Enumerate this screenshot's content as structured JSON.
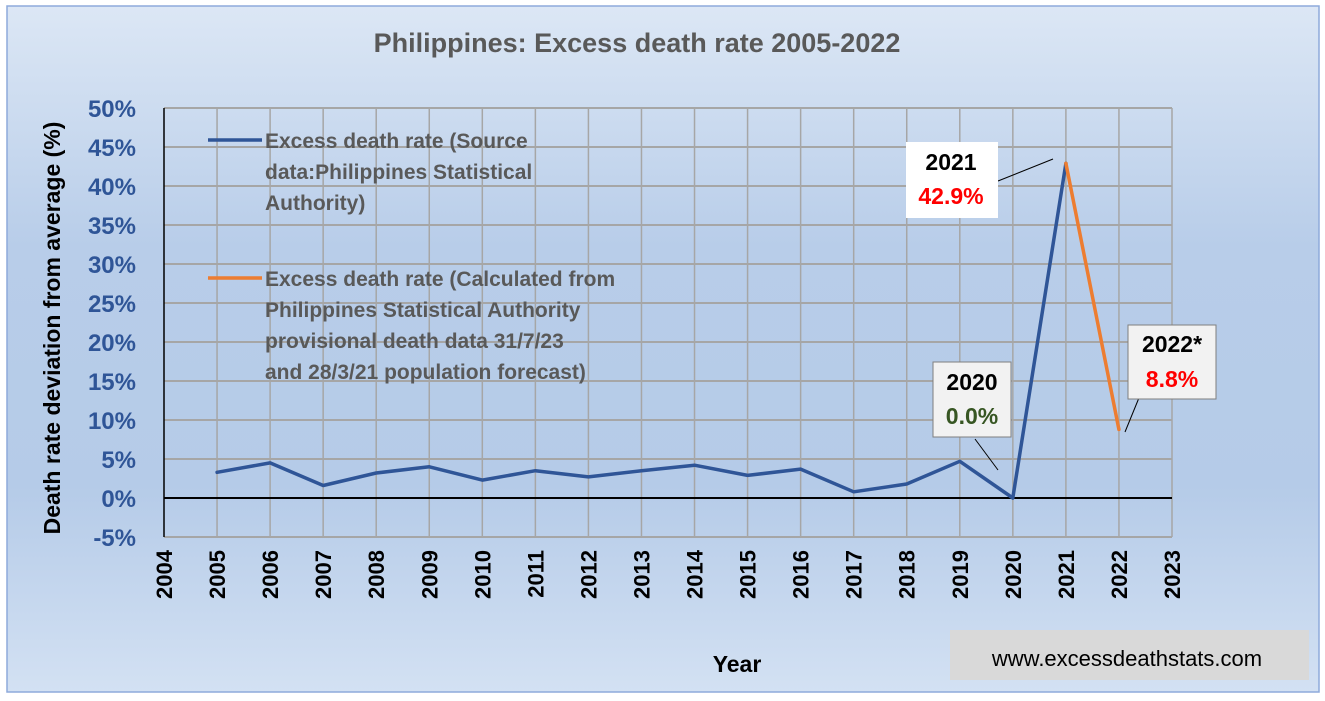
{
  "chart_data": {
    "type": "line",
    "title": "Philippines: Excess death rate 2005-2022",
    "xlabel": "Year",
    "ylabel": "Death rate deviation from average (%)",
    "xlim": [
      2004,
      2023
    ],
    "ylim": [
      -5,
      50
    ],
    "x_ticks": [
      "2004",
      "2005",
      "2006",
      "2007",
      "2008",
      "2009",
      "2010",
      "2011",
      "2012",
      "2013",
      "2014",
      "2015",
      "2016",
      "2017",
      "2018",
      "2019",
      "2020",
      "2021",
      "2022",
      "2023"
    ],
    "y_ticks": [
      "-5%",
      "0%",
      "5%",
      "10%",
      "15%",
      "20%",
      "25%",
      "30%",
      "35%",
      "40%",
      "45%",
      "50%"
    ],
    "y_tick_values": [
      -5,
      0,
      5,
      10,
      15,
      20,
      25,
      30,
      35,
      40,
      45,
      50
    ],
    "grid": true,
    "legend_position": "top-left",
    "series": [
      {
        "name": "Excess death rate (Source data:Philippines Statistical Authority)",
        "color": "#2f5597",
        "points": [
          [
            2005,
            3.3
          ],
          [
            2006,
            4.5
          ],
          [
            2007,
            1.6
          ],
          [
            2008,
            3.2
          ],
          [
            2009,
            4.0
          ],
          [
            2010,
            2.3
          ],
          [
            2011,
            3.5
          ],
          [
            2012,
            2.7
          ],
          [
            2013,
            3.5
          ],
          [
            2014,
            4.2
          ],
          [
            2015,
            2.9
          ],
          [
            2016,
            3.7
          ],
          [
            2017,
            0.8
          ],
          [
            2018,
            1.8
          ],
          [
            2019,
            4.7
          ],
          [
            2020,
            0.0
          ],
          [
            2021,
            42.9
          ]
        ]
      },
      {
        "name": "Excess death rate (Calculated from Philippines Statistical Authority provisional death data 31/7/23 and 28/3/21 population forecast)",
        "color": "#ed7d31",
        "points": [
          [
            2021,
            42.9
          ],
          [
            2022,
            8.8
          ]
        ]
      }
    ],
    "annotations": [
      {
        "year_label": "2021",
        "value_label": "42.9%",
        "value_color": "#ff0000"
      },
      {
        "year_label": "2022*",
        "value_label": "8.8%",
        "value_color": "#ff0000"
      },
      {
        "year_label": "2020",
        "value_label": "0.0%",
        "value_color": "#375623"
      }
    ]
  },
  "legend": [
    {
      "lines": [
        "Excess death rate (Source",
        "data:Philippines Statistical",
        "Authority)"
      ],
      "color": "#2f5597"
    },
    {
      "lines": [
        "Excess death rate (Calculated from",
        "Philippines Statistical Authority",
        "provisional death data 31/7/23",
        "and 28/3/21 population forecast)"
      ],
      "color": "#ed7d31"
    }
  ],
  "source_label": "www.excessdeathstats.com"
}
